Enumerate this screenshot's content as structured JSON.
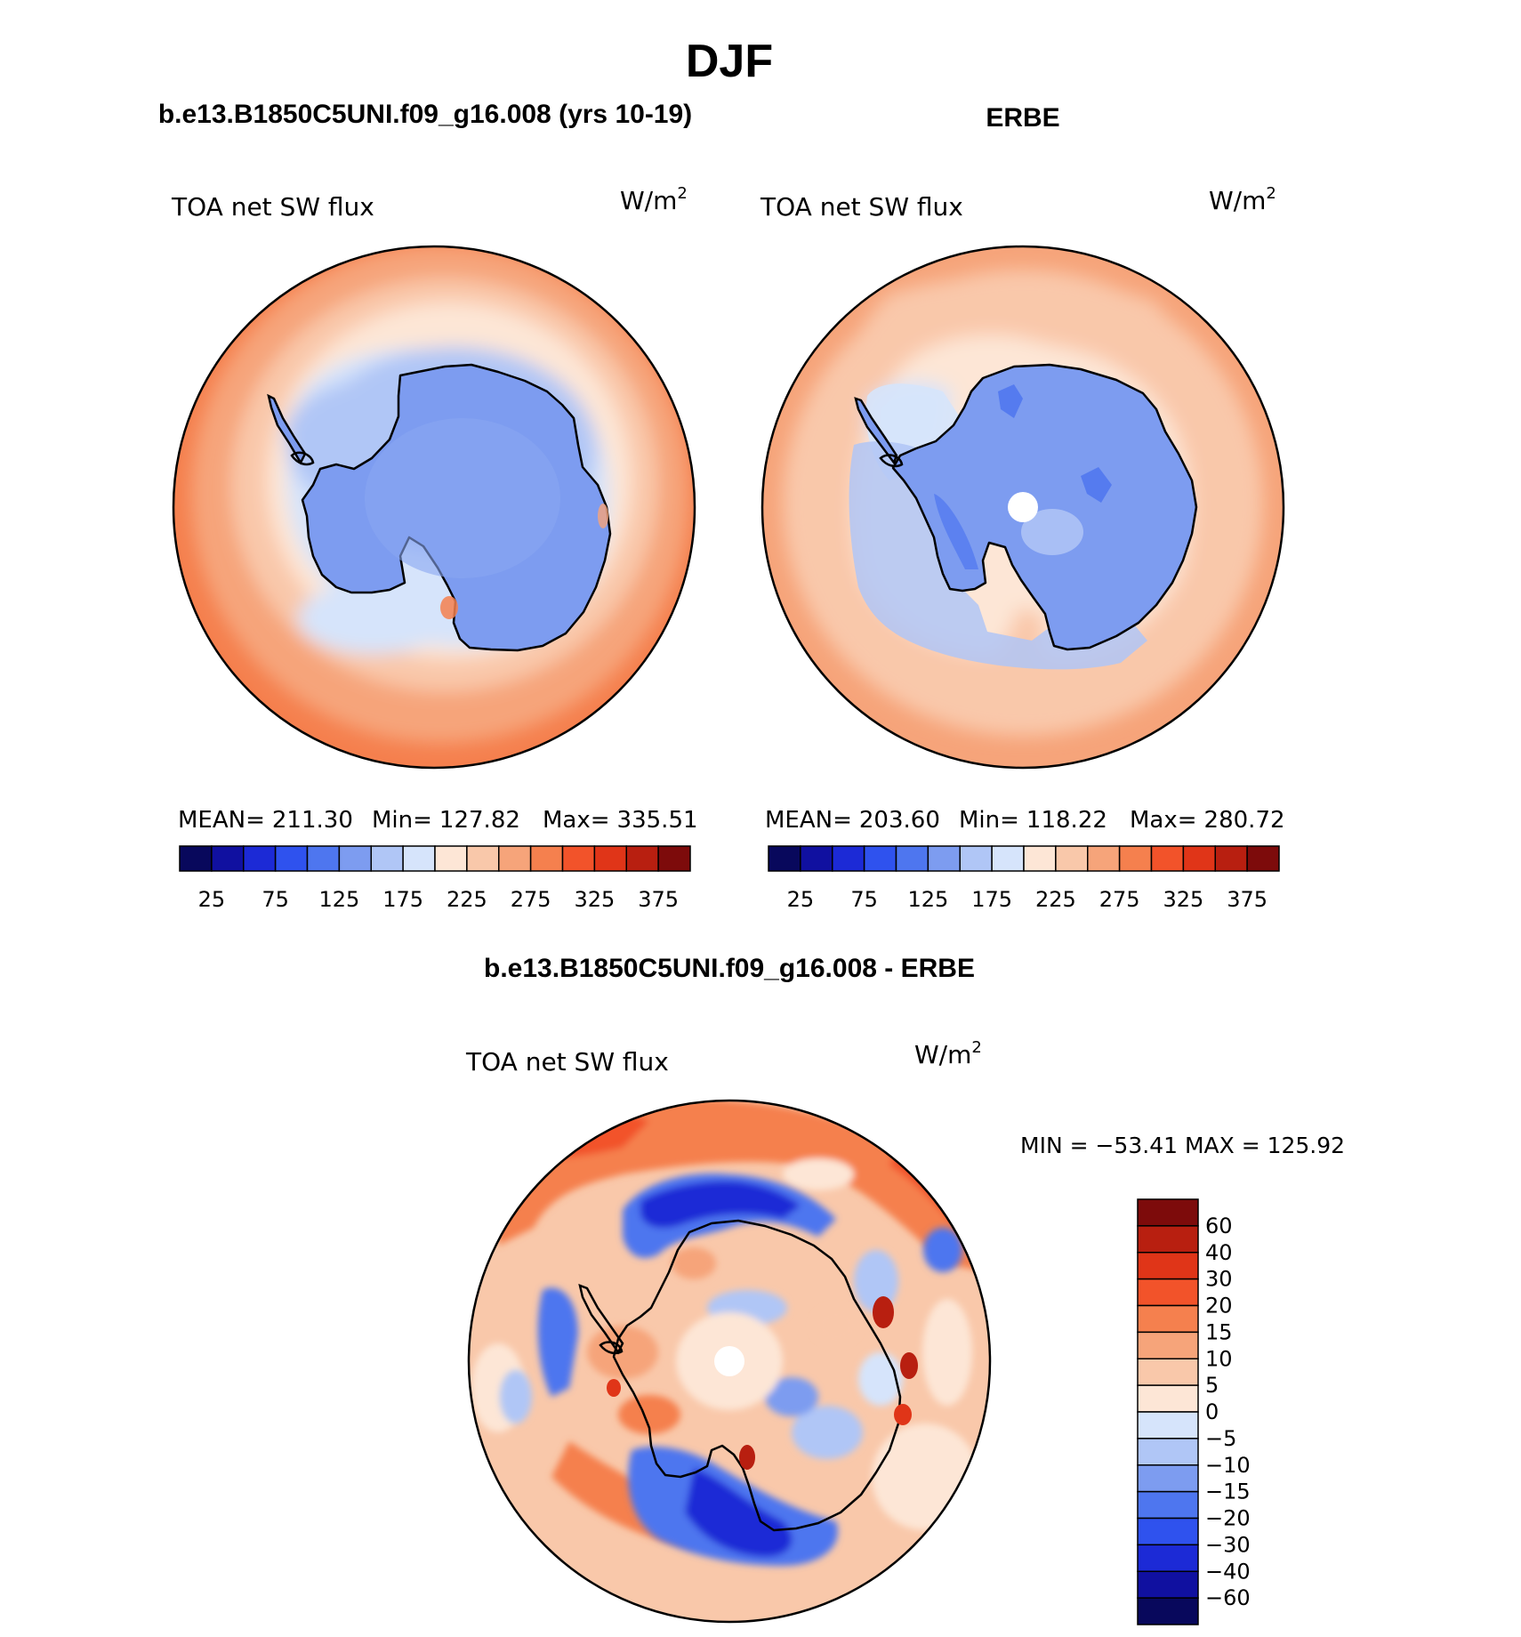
{
  "page_title": "DJF",
  "chart_data": [
    {
      "type": "polar_contour_map",
      "title": "b.e13.B1850C5UNI.f09_g16.008 (yrs 10-19)",
      "variable": "TOA net SW flux",
      "units_base": "W/m",
      "units_exp": "2",
      "stats": [
        {
          "label": "MEAN=",
          "value": "211.30"
        },
        {
          "label": "Min=",
          "value": "127.82"
        },
        {
          "label": "Max=",
          "value": "335.51"
        }
      ],
      "colorbar": {
        "orientation": "horizontal",
        "ticks": [
          "25",
          "75",
          "125",
          "175",
          "225",
          "275",
          "325",
          "375"
        ],
        "colors": [
          "#08085c",
          "#1010a0",
          "#1c2ad6",
          "#2f52ee",
          "#4e76ef",
          "#7d9cf0",
          "#b0c6f6",
          "#d6e4fb",
          "#fde6d6",
          "#f9c8aa",
          "#f6a47a",
          "#f5804e",
          "#f2532a",
          "#e03518",
          "#b81f10",
          "#7d0b0b"
        ]
      }
    },
    {
      "type": "polar_contour_map",
      "title": "ERBE",
      "variable": "TOA net SW flux",
      "units_base": "W/m",
      "units_exp": "2",
      "stats": [
        {
          "label": "MEAN=",
          "value": "203.60"
        },
        {
          "label": "Min=",
          "value": "118.22"
        },
        {
          "label": "Max=",
          "value": "280.72"
        }
      ],
      "colorbar": {
        "orientation": "horizontal",
        "ticks": [
          "25",
          "75",
          "125",
          "175",
          "225",
          "275",
          "325",
          "375"
        ],
        "colors": [
          "#08085c",
          "#1010a0",
          "#1c2ad6",
          "#2f52ee",
          "#4e76ef",
          "#7d9cf0",
          "#b0c6f6",
          "#d6e4fb",
          "#fde6d6",
          "#f9c8aa",
          "#f6a47a",
          "#f5804e",
          "#f2532a",
          "#e03518",
          "#b81f10",
          "#7d0b0b"
        ]
      }
    },
    {
      "type": "polar_contour_map",
      "title": "b.e13.B1850C5UNI.f09_g16.008 - ERBE",
      "variable": "TOA net SW flux",
      "units_base": "W/m",
      "units_exp": "2",
      "range_text": "MIN = −53.41 MAX = 125.92",
      "colorbar": {
        "orientation": "vertical",
        "ticks": [
          "60",
          "40",
          "30",
          "20",
          "15",
          "10",
          "5",
          "0",
          "−5",
          "−10",
          "−15",
          "−20",
          "−30",
          "−40",
          "−60"
        ],
        "colors": [
          "#7d0b0b",
          "#b81f10",
          "#e03518",
          "#f2532a",
          "#f5804e",
          "#f6a47a",
          "#f9c8aa",
          "#fde6d6",
          "#d6e4fb",
          "#b0c6f6",
          "#7d9cf0",
          "#4e76ef",
          "#2f52ee",
          "#1c2ad6",
          "#1010a0",
          "#08085c"
        ]
      }
    }
  ]
}
